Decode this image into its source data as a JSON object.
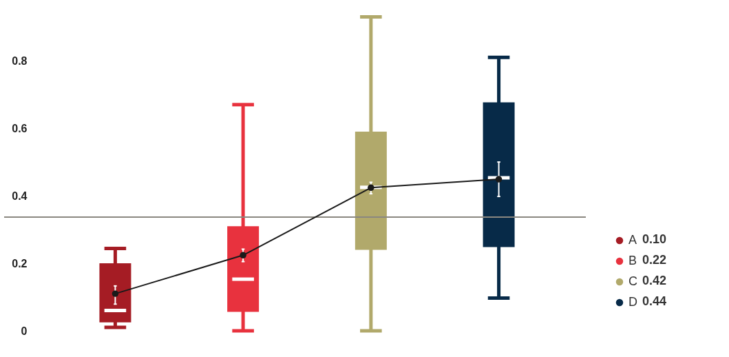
{
  "chart_data": {
    "type": "box",
    "categories": [
      null,
      null,
      null,
      null
    ],
    "series": [
      {
        "name": "A",
        "type": "box",
        "color": "#a51c24",
        "boxes": [
          {
            "low": 0.01,
            "q1": 0.025,
            "median": 0.06,
            "q3": 0.2,
            "high": 0.244
          },
          null,
          null,
          null
        ]
      },
      {
        "name": "B",
        "type": "box",
        "color": "#e8323e",
        "boxes": [
          null,
          {
            "low": 0.0,
            "q1": 0.056,
            "median": 0.153,
            "q3": 0.31,
            "high": 0.67
          },
          null,
          null
        ]
      },
      {
        "name": "C",
        "type": "box",
        "color": "#b1a96b",
        "boxes": [
          null,
          null,
          {
            "low": 0.0,
            "q1": 0.24,
            "median": 0.425,
            "q3": 0.59,
            "high": 0.93
          },
          null
        ]
      },
      {
        "name": "D",
        "type": "box",
        "color": "#072a48",
        "boxes": [
          null,
          null,
          null,
          {
            "low": 0.097,
            "q1": 0.248,
            "median": 0.453,
            "q3": 0.677,
            "high": 0.81
          }
        ]
      },
      {
        "type": "line",
        "color": "#1a1a1a",
        "marker": "circle",
        "values": [
          0.11,
          0.224,
          0.424,
          0.449
        ],
        "errors": [
          [
            0.079,
            0.133
          ],
          [
            0.205,
            0.242
          ],
          [
            0.406,
            0.44
          ],
          [
            0.398,
            0.5
          ]
        ]
      }
    ],
    "annotations": [
      "0.10",
      "0.22",
      "0.42",
      "0.44"
    ],
    "ylim": [
      0,
      0.98
    ],
    "yticks": [
      0,
      0.2,
      0.4,
      0.6,
      0.8
    ],
    "ref_lines": [
      {
        "axis": "y",
        "value": 0.337,
        "color": "#8a8780"
      }
    ],
    "grid": false,
    "legend": "right",
    "tick_labels": "y"
  }
}
